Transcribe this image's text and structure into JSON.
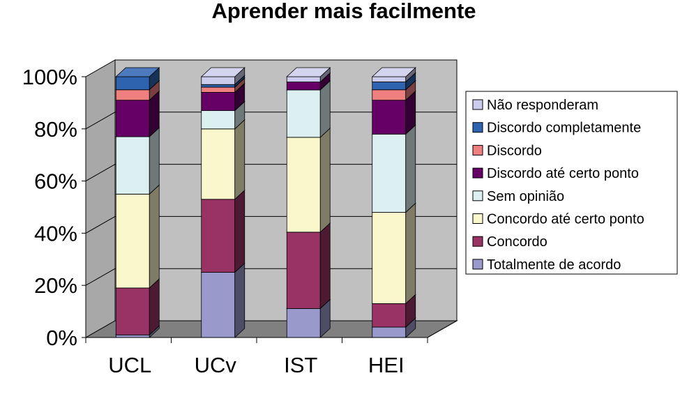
{
  "chart_data": {
    "type": "bar",
    "stacked": "percent",
    "title": "Aprender mais facilmente",
    "xlabel": "",
    "ylabel": "",
    "ylim": [
      0,
      100
    ],
    "yticks": [
      "0%",
      "20%",
      "40%",
      "60%",
      "80%",
      "100%"
    ],
    "categories": [
      "UCL",
      "UCv",
      "IST",
      "HEI"
    ],
    "grid": true,
    "legend": "right",
    "series": [
      {
        "name": "Totalmente de acordo",
        "color": "#9999cc",
        "values": [
          1,
          25,
          11,
          4
        ]
      },
      {
        "name": "Concordo",
        "color": "#993366",
        "values": [
          18,
          28,
          29,
          9
        ]
      },
      {
        "name": "Concordo até certo ponto",
        "color": "#fbf7cc",
        "values": [
          36,
          27,
          36,
          35
        ]
      },
      {
        "name": "Sem opinião",
        "color": "#dcf0f2",
        "values": [
          22,
          7,
          18,
          30
        ]
      },
      {
        "name": "Discordo até certo ponto",
        "color": "#660066",
        "values": [
          14,
          7,
          3,
          13
        ]
      },
      {
        "name": "Discordo",
        "color": "#f08080",
        "values": [
          4,
          2,
          0,
          4
        ]
      },
      {
        "name": "Discordo completamente",
        "color": "#2e63b0",
        "values": [
          5,
          1,
          0,
          3
        ]
      },
      {
        "name": "Não responderam",
        "color": "#ccccec",
        "values": [
          0,
          3,
          2,
          2
        ]
      }
    ]
  }
}
